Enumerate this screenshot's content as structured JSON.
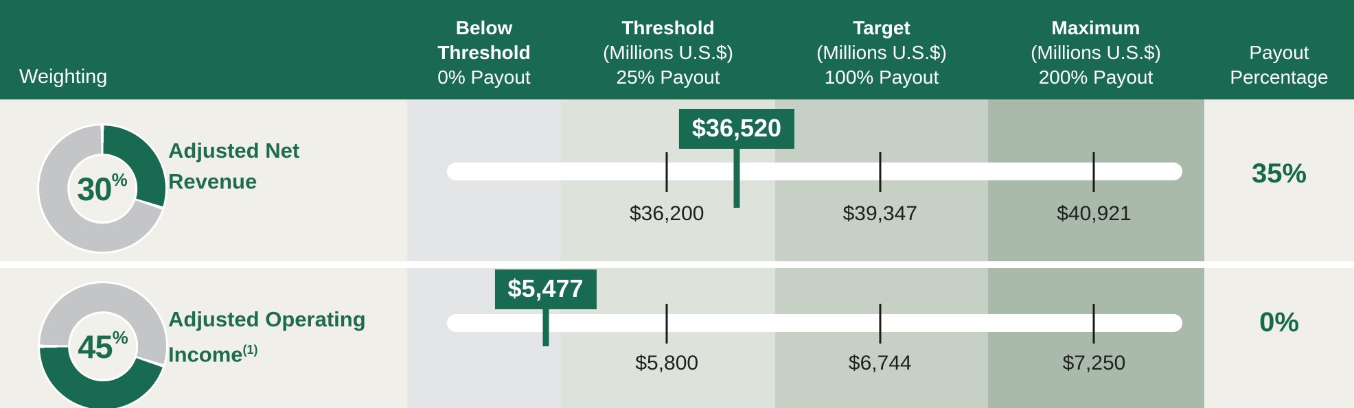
{
  "header": {
    "weighting_label": "Weighting",
    "columns": [
      {
        "b1": "Below",
        "b2": "Threshold",
        "n1": "0% Payout"
      },
      {
        "b1": "Threshold",
        "n1": "(Millions U.S.$)",
        "n2": "25% Payout"
      },
      {
        "b1": "Target",
        "n1": "(Millions U.S.$)",
        "n2": "100% Payout"
      },
      {
        "b1": "Maximum",
        "n1": "(Millions U.S.$)",
        "n2": "200% Payout"
      },
      {
        "n1": "Payout",
        "n2": "Percentage"
      }
    ]
  },
  "rows": [
    {
      "donut": {
        "value": "30",
        "sup": "%",
        "pct": 30,
        "green_start_deg": 0
      },
      "metric_line1": "Adjusted Net",
      "metric_line2": "Revenue",
      "marker": {
        "label": "$36,520",
        "pos_pct": 39.4
      },
      "ticks": [
        {
          "label": "$36,200",
          "pos_pct": 29.9
        },
        {
          "label": "$39,347",
          "pos_pct": 58.9
        },
        {
          "label": "$40,921",
          "pos_pct": 88.0
        }
      ],
      "payout": "35%"
    },
    {
      "donut": {
        "value": "45",
        "sup": "%",
        "pct": 45,
        "green_start_deg": 108
      },
      "metric_line1": "Adjusted Operating",
      "metric_line2": "Income",
      "metric_sup": "(1)",
      "marker": {
        "label": "$5,477",
        "pos_pct": 13.4
      },
      "ticks": [
        {
          "label": "$5,800",
          "pos_pct": 29.9
        },
        {
          "label": "$6,744",
          "pos_pct": 58.9
        },
        {
          "label": "$7,250",
          "pos_pct": 88.0
        }
      ],
      "payout": "0%"
    }
  ],
  "colors": {
    "header_green": "#1a6a52",
    "accent_green": "#186a50",
    "text_green": "#1d6b51",
    "cream": "#f1efe9",
    "band_below": "#e3e5e7",
    "band_threshold": "#dde2db",
    "band_target": "#c7d0c5",
    "band_maximum": "#a9baab",
    "donut_gray": "#c3c5c7",
    "tick_black": "#1b1b19",
    "white": "#ffffff"
  },
  "chart_data": {
    "type": "bullet",
    "unit": "Millions U.S.$",
    "payout_scale": {
      "below_threshold": "0% Payout",
      "threshold": "25% Payout",
      "target": "100% Payout",
      "maximum": "200% Payout"
    },
    "metrics": [
      {
        "name": "Adjusted Net Revenue",
        "weighting_pct": 30,
        "actual": 36520,
        "threshold": 36200,
        "target": 39347,
        "maximum": 40921,
        "payout_pct": 35
      },
      {
        "name": "Adjusted Operating Income(1)",
        "weighting_pct": 45,
        "actual": 5477,
        "threshold": 5800,
        "target": 6744,
        "maximum": 7250,
        "payout_pct": 0
      }
    ]
  }
}
